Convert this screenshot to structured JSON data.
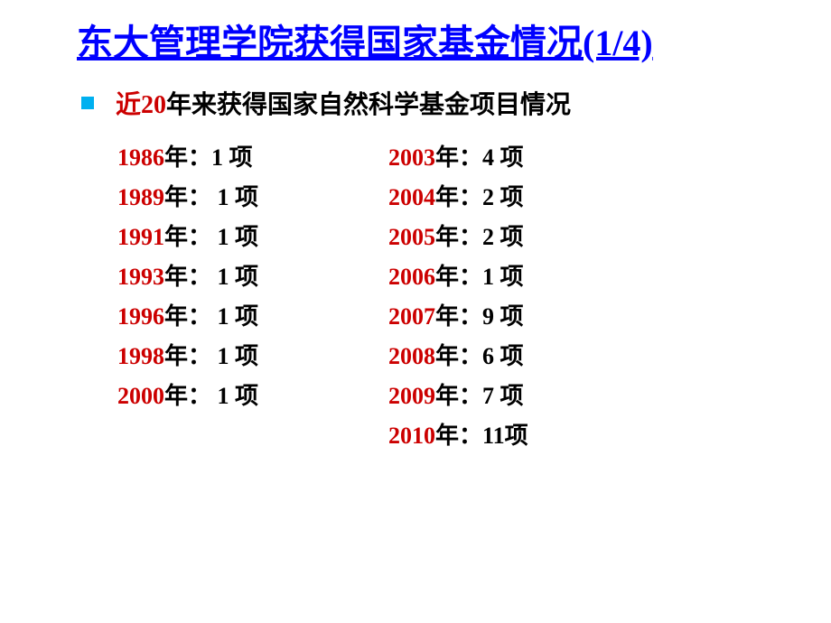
{
  "title": "东大管理学院获得国家基金情况(1/4)",
  "bullet": {
    "prefix_red": "近",
    "highlight": "20",
    "suffix": "年来获得国家自然科学基金项目情况"
  },
  "colors": {
    "title": "#0000ff",
    "accent_red": "#cc0000",
    "text_black": "#000000",
    "bullet_marker": "#00b0f0",
    "background": "#ffffff"
  },
  "typography": {
    "title_fontsize": 40,
    "bullet_fontsize": 28,
    "data_fontsize": 26
  },
  "left_column": [
    {
      "year": "1986",
      "sep": "年：",
      "count": "1 项"
    },
    {
      "year": "1989",
      "sep": "年： ",
      "count": "1 项"
    },
    {
      "year": "1991",
      "sep": "年： ",
      "count": "1 项"
    },
    {
      "year": "1993",
      "sep": "年： ",
      "count": "1 项"
    },
    {
      "year": "1996",
      "sep": "年： ",
      "count": "1 项"
    },
    {
      "year": "1998",
      "sep": "年： ",
      "count": "1 项"
    },
    {
      "year": "2000",
      "sep": "年： ",
      "count": "1 项"
    }
  ],
  "right_column": [
    {
      "year": "2003",
      "sep": "年：",
      "count": "4 项"
    },
    {
      "year": "2004",
      "sep": "年：",
      "count": "2 项"
    },
    {
      "year": "2005",
      "sep": "年：",
      "count": "2 项"
    },
    {
      "year": "2006",
      "sep": "年：",
      "count": "1 项"
    },
    {
      "year": "2007",
      "sep": "年：",
      "count": "9 项"
    },
    {
      "year": "2008",
      "sep": "年：",
      "count": "6 项"
    },
    {
      "year": "2009",
      "sep": "年：",
      "count": "7 项"
    },
    {
      "year": "2010",
      "sep": "年：",
      "count": "11项"
    }
  ]
}
